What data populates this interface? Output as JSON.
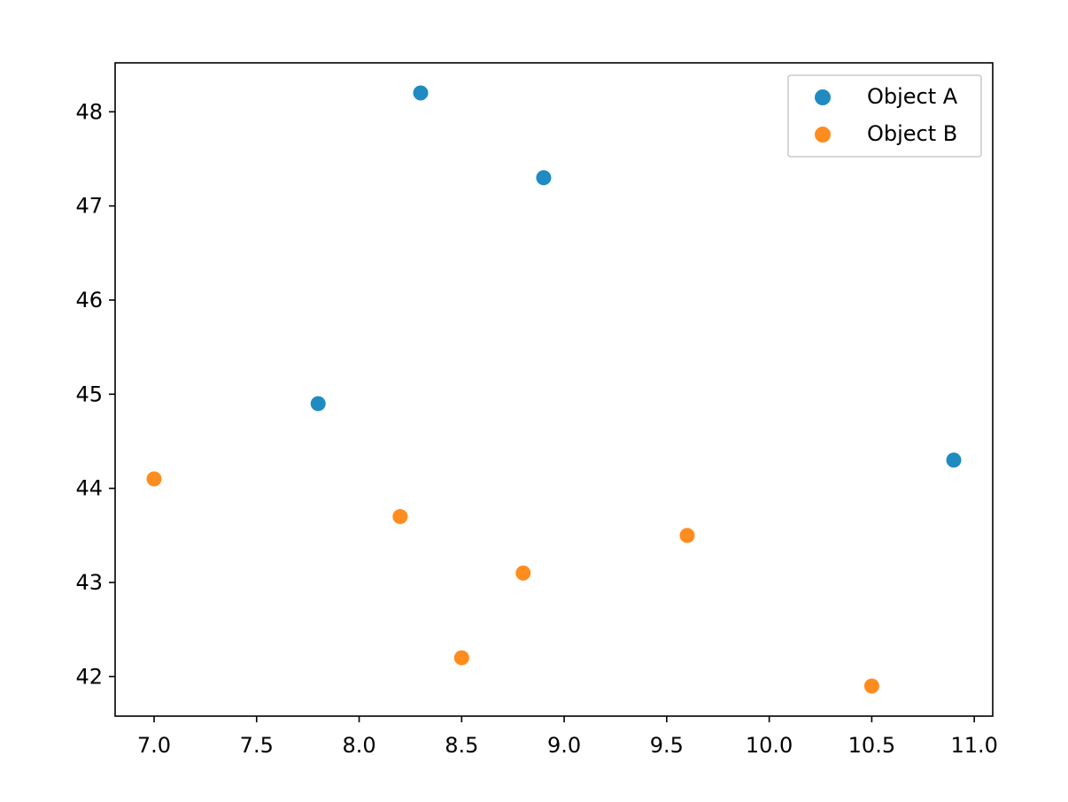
{
  "chart_data": {
    "type": "scatter",
    "title": "",
    "xlabel": "",
    "ylabel": "",
    "xlim": [
      6.81,
      11.09
    ],
    "ylim": [
      41.58,
      48.52
    ],
    "x_ticks": [
      "7.0",
      "7.5",
      "8.0",
      "8.5",
      "9.0",
      "9.5",
      "10.0",
      "10.5",
      "11.0"
    ],
    "y_ticks": [
      "42",
      "43",
      "44",
      "45",
      "46",
      "47",
      "48"
    ],
    "grid": false,
    "legend_position": "top-right",
    "series": [
      {
        "name": "Object A",
        "color": "#1f8bc0",
        "x": [
          8.3,
          8.9,
          7.8,
          10.9
        ],
        "y": [
          48.2,
          47.3,
          44.9,
          44.3
        ]
      },
      {
        "name": "Object B",
        "color": "#ff8c1f",
        "x": [
          7.0,
          8.2,
          9.6,
          8.8,
          8.5,
          10.5
        ],
        "y": [
          44.1,
          43.7,
          43.5,
          43.1,
          42.2,
          41.9
        ]
      }
    ]
  }
}
